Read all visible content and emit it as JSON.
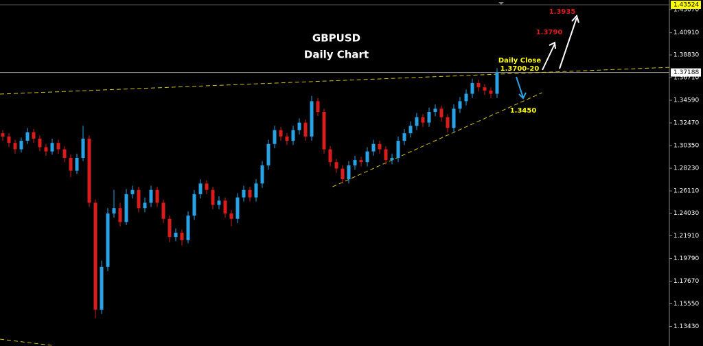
{
  "chart_data": {
    "type": "candlestick",
    "title": "GBPUSD",
    "subtitle": "Daily Chart",
    "up_color": "#29a3e6",
    "down_color": "#d91c1c",
    "ylim": [
      1.116,
      1.4397
    ],
    "yticks": [
      {
        "value": 1.4307,
        "label": "1.43070"
      },
      {
        "value": 1.4091,
        "label": "1.40910"
      },
      {
        "value": 1.3883,
        "label": "1.38830"
      },
      {
        "value": 1.3671,
        "label": "1.36710"
      },
      {
        "value": 1.3459,
        "label": "1.34590"
      },
      {
        "value": 1.3247,
        "label": "1.32470"
      },
      {
        "value": 1.3035,
        "label": "1.30350"
      },
      {
        "value": 1.2823,
        "label": "1.28230"
      },
      {
        "value": 1.2611,
        "label": "1.26110"
      },
      {
        "value": 1.2403,
        "label": "1.24030"
      },
      {
        "value": 1.2191,
        "label": "1.21910"
      },
      {
        "value": 1.1979,
        "label": "1.19790"
      },
      {
        "value": 1.1767,
        "label": "1.17670"
      },
      {
        "value": 1.1555,
        "label": "1.15550"
      },
      {
        "value": 1.1343,
        "label": "1.13430"
      }
    ],
    "current_price": {
      "value": 1.37188,
      "label": "1.37188"
    },
    "high_price": {
      "value": 1.43524,
      "label": "1.43524"
    },
    "candles": [
      [
        1.315,
        1.318,
        1.308,
        1.312
      ],
      [
        1.312,
        1.315,
        1.302,
        1.306
      ],
      [
        1.306,
        1.309,
        1.296,
        1.3
      ],
      [
        1.3,
        1.311,
        1.297,
        1.308
      ],
      [
        1.308,
        1.32,
        1.305,
        1.316
      ],
      [
        1.316,
        1.319,
        1.306,
        1.31
      ],
      [
        1.31,
        1.313,
        1.298,
        1.302
      ],
      [
        1.302,
        1.305,
        1.294,
        1.298
      ],
      [
        1.298,
        1.31,
        1.295,
        1.306
      ],
      [
        1.306,
        1.309,
        1.296,
        1.3
      ],
      [
        1.3,
        1.303,
        1.288,
        1.292
      ],
      [
        1.292,
        1.295,
        1.274,
        1.28
      ],
      [
        1.28,
        1.296,
        1.277,
        1.292
      ],
      [
        1.292,
        1.322,
        1.289,
        1.31
      ],
      [
        1.31,
        1.313,
        1.246,
        1.25
      ],
      [
        1.25,
        1.253,
        1.142,
        1.15
      ],
      [
        1.15,
        1.196,
        1.146,
        1.19
      ],
      [
        1.19,
        1.245,
        1.186,
        1.24
      ],
      [
        1.24,
        1.262,
        1.236,
        1.245
      ],
      [
        1.245,
        1.25,
        1.228,
        1.232
      ],
      [
        1.232,
        1.263,
        1.229,
        1.258
      ],
      [
        1.258,
        1.266,
        1.254,
        1.262
      ],
      [
        1.262,
        1.265,
        1.241,
        1.245
      ],
      [
        1.245,
        1.255,
        1.241,
        1.25
      ],
      [
        1.25,
        1.266,
        1.246,
        1.262
      ],
      [
        1.262,
        1.265,
        1.246,
        1.25
      ],
      [
        1.25,
        1.253,
        1.231,
        1.235
      ],
      [
        1.235,
        1.238,
        1.213,
        1.218
      ],
      [
        1.218,
        1.226,
        1.214,
        1.222
      ],
      [
        1.222,
        1.225,
        1.21,
        1.215
      ],
      [
        1.215,
        1.242,
        1.212,
        1.238
      ],
      [
        1.238,
        1.262,
        1.234,
        1.258
      ],
      [
        1.258,
        1.272,
        1.254,
        1.268
      ],
      [
        1.268,
        1.271,
        1.258,
        1.262
      ],
      [
        1.262,
        1.265,
        1.244,
        1.248
      ],
      [
        1.248,
        1.256,
        1.244,
        1.252
      ],
      [
        1.252,
        1.255,
        1.236,
        1.24
      ],
      [
        1.24,
        1.243,
        1.228,
        1.235
      ],
      [
        1.235,
        1.259,
        1.231,
        1.255
      ],
      [
        1.255,
        1.266,
        1.251,
        1.262
      ],
      [
        1.262,
        1.265,
        1.251,
        1.255
      ],
      [
        1.255,
        1.272,
        1.251,
        1.268
      ],
      [
        1.268,
        1.289,
        1.264,
        1.285
      ],
      [
        1.285,
        1.309,
        1.281,
        1.305
      ],
      [
        1.305,
        1.322,
        1.301,
        1.318
      ],
      [
        1.318,
        1.321,
        1.308,
        1.312
      ],
      [
        1.312,
        1.315,
        1.304,
        1.308
      ],
      [
        1.308,
        1.322,
        1.304,
        1.318
      ],
      [
        1.318,
        1.329,
        1.314,
        1.325
      ],
      [
        1.325,
        1.328,
        1.308,
        1.312
      ],
      [
        1.312,
        1.35,
        1.308,
        1.345
      ],
      [
        1.345,
        1.348,
        1.331,
        1.335
      ],
      [
        1.335,
        1.338,
        1.296,
        1.3
      ],
      [
        1.3,
        1.303,
        1.284,
        1.288
      ],
      [
        1.288,
        1.291,
        1.278,
        1.282
      ],
      [
        1.282,
        1.285,
        1.268,
        1.272
      ],
      [
        1.272,
        1.289,
        1.268,
        1.285
      ],
      [
        1.285,
        1.294,
        1.281,
        1.29
      ],
      [
        1.29,
        1.293,
        1.284,
        1.288
      ],
      [
        1.288,
        1.302,
        1.284,
        1.298
      ],
      [
        1.298,
        1.309,
        1.294,
        1.305
      ],
      [
        1.305,
        1.308,
        1.296,
        1.3
      ],
      [
        1.3,
        1.303,
        1.286,
        1.29
      ],
      [
        1.29,
        1.296,
        1.286,
        1.292
      ],
      [
        1.292,
        1.312,
        1.288,
        1.308
      ],
      [
        1.308,
        1.319,
        1.304,
        1.315
      ],
      [
        1.315,
        1.326,
        1.311,
        1.322
      ],
      [
        1.322,
        1.334,
        1.318,
        1.33
      ],
      [
        1.33,
        1.333,
        1.321,
        1.325
      ],
      [
        1.325,
        1.339,
        1.321,
        1.335
      ],
      [
        1.335,
        1.342,
        1.331,
        1.338
      ],
      [
        1.338,
        1.341,
        1.326,
        1.33
      ],
      [
        1.33,
        1.333,
        1.316,
        1.32
      ],
      [
        1.32,
        1.342,
        1.316,
        1.338
      ],
      [
        1.338,
        1.349,
        1.334,
        1.345
      ],
      [
        1.345,
        1.356,
        1.341,
        1.352
      ],
      [
        1.352,
        1.366,
        1.348,
        1.362
      ],
      [
        1.362,
        1.365,
        1.354,
        1.358
      ],
      [
        1.358,
        1.361,
        1.351,
        1.355
      ],
      [
        1.355,
        1.358,
        1.348,
        1.352
      ],
      [
        1.352,
        1.376,
        1.348,
        1.372
      ]
    ],
    "trendlines": [
      {
        "x": [
          -0.44,
          107.9
        ],
        "y": [
          1.3517,
          1.3767
        ]
      },
      {
        "x": [
          53.4,
          87.3
        ],
        "y": [
          1.265,
          1.353
        ]
      },
      {
        "x": [
          -0.44,
          7.9
        ],
        "y": [
          1.1224,
          1.1166
        ]
      }
    ],
    "trendline_color": "#d4c21a",
    "annotations": {
      "daily_close": "Daily Close",
      "close_range": "1.3700-20",
      "support": "1.3450",
      "target_1": "1.3790",
      "target_2": "1.3935"
    }
  }
}
